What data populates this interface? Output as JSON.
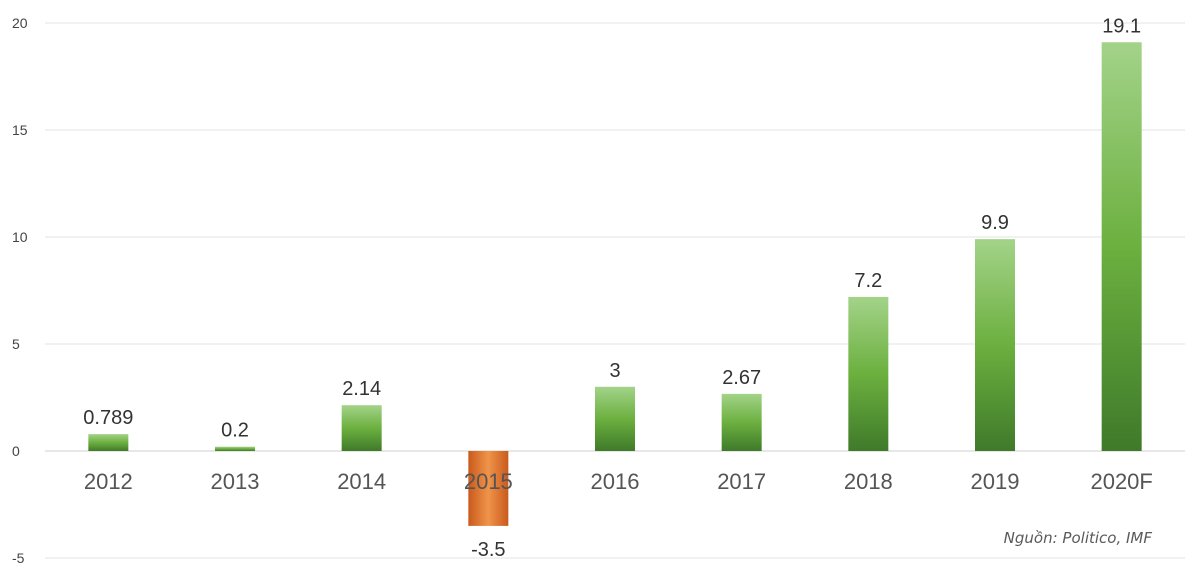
{
  "chart_data": {
    "type": "bar",
    "categories": [
      "2012",
      "2013",
      "2014",
      "2015",
      "2016",
      "2017",
      "2018",
      "2019",
      "2020F"
    ],
    "values": [
      0.789,
      0.2,
      2.14,
      -3.5,
      3,
      2.67,
      7.2,
      9.9,
      19.1
    ],
    "value_labels": [
      "0.789",
      "0.2",
      "2.14",
      "-3.5",
      "3",
      "2.67",
      "7.2",
      "9.9",
      "19.1"
    ],
    "yticks": [
      -5,
      0,
      5,
      10,
      15,
      20
    ],
    "ylim": [
      -5,
      20
    ],
    "grid": true,
    "colors": {
      "positive": "#5a9e34",
      "negative": "#e0752a"
    },
    "source": "Nguồn: Politico, IMF"
  }
}
